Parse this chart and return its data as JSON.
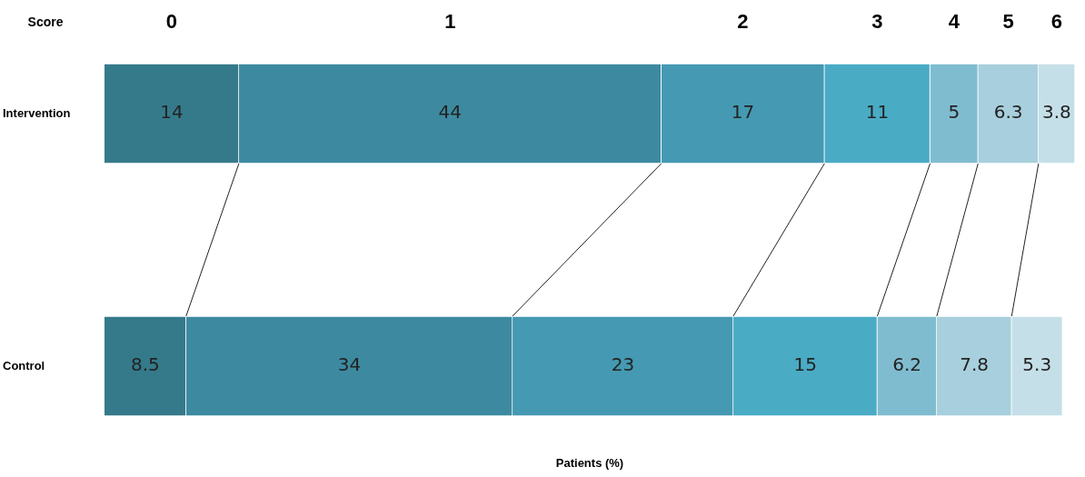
{
  "chart_data": {
    "type": "bar",
    "orientation": "horizontal",
    "stacked": true,
    "data_labels": true,
    "legend": "top",
    "legend_title": "Score",
    "xlabel": "Patients (%)",
    "tick_labels": "y",
    "xlim": [
      0,
      101.1
    ],
    "categories": [
      "Intervention",
      "Control"
    ],
    "series": [
      {
        "name": "0",
        "color": "#357a8a",
        "values": [
          14,
          8.5
        ]
      },
      {
        "name": "1",
        "color": "#3d8aa0",
        "values": [
          44,
          34
        ]
      },
      {
        "name": "2",
        "color": "#4599b2",
        "values": [
          17,
          23
        ]
      },
      {
        "name": "3",
        "color": "#4aabc5",
        "values": [
          11,
          15
        ]
      },
      {
        "name": "4",
        "color": "#80bcd0",
        "values": [
          5,
          6.2
        ]
      },
      {
        "name": "5",
        "color": "#a8cfdd",
        "values": [
          6.3,
          7.8
        ]
      },
      {
        "name": "6",
        "color": "#c5dfe8",
        "values": [
          3.8,
          5.3
        ]
      }
    ]
  }
}
